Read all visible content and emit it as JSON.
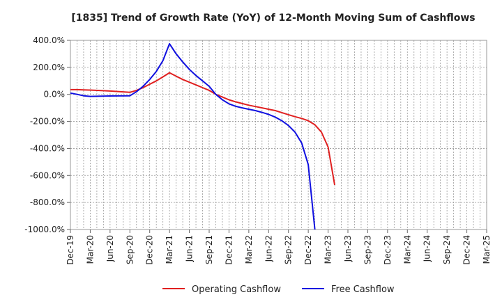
{
  "chart_data": {
    "type": "line",
    "title": "[1835]  Trend of Growth Rate (YoY) of 12-Month Moving Sum of Cashflows",
    "x_labels": [
      "Dec-19",
      "Mar-20",
      "Jun-20",
      "Sep-20",
      "Dec-20",
      "Mar-21",
      "Jun-21",
      "Sep-21",
      "Dec-21",
      "Mar-22",
      "Jun-22",
      "Sep-22",
      "Dec-22",
      "Mar-23",
      "Jun-23",
      "Sep-23",
      "Dec-23",
      "Mar-24",
      "Jun-24",
      "Sep-24",
      "Dec-24",
      "Mar-25"
    ],
    "y_ticks": [
      "400.0%",
      "200.0%",
      "0.0%",
      "-200.0%",
      "-400.0%",
      "-600.0%",
      "-800.0%",
      "-1000.0%"
    ],
    "ylim": [
      -1000,
      400
    ],
    "grid": true,
    "legend_position": "bottom-center",
    "series": [
      {
        "name": "Operating Cashflow",
        "color": "#e02020",
        "points": [
          [
            "Dec-19",
            35
          ],
          [
            "Jan-20",
            35
          ],
          [
            "Feb-20",
            33
          ],
          [
            "Mar-20",
            32
          ],
          [
            "Jun-20",
            25
          ],
          [
            "Sep-20",
            15
          ],
          [
            "Oct-20",
            30
          ],
          [
            "Nov-20",
            50
          ],
          [
            "Dec-20",
            75
          ],
          [
            "Jan-21",
            100
          ],
          [
            "Feb-21",
            130
          ],
          [
            "Mar-21",
            160
          ],
          [
            "Apr-21",
            135
          ],
          [
            "May-21",
            110
          ],
          [
            "Jun-21",
            90
          ],
          [
            "Jul-21",
            70
          ],
          [
            "Aug-21",
            50
          ],
          [
            "Sep-21",
            30
          ],
          [
            "Oct-21",
            0
          ],
          [
            "Nov-21",
            -20
          ],
          [
            "Dec-21",
            -40
          ],
          [
            "Jan-22",
            -55
          ],
          [
            "Feb-22",
            -68
          ],
          [
            "Mar-22",
            -80
          ],
          [
            "Apr-22",
            -90
          ],
          [
            "May-22",
            -100
          ],
          [
            "Jun-22",
            -110
          ],
          [
            "Jul-22",
            -120
          ],
          [
            "Aug-22",
            -135
          ],
          [
            "Sep-22",
            -150
          ],
          [
            "Oct-22",
            -165
          ],
          [
            "Nov-22",
            -178
          ],
          [
            "Dec-22",
            -195
          ],
          [
            "Jan-23",
            -225
          ],
          [
            "Feb-23",
            -280
          ],
          [
            "Mar-23",
            -390
          ],
          [
            "Apr-23",
            -670
          ]
        ]
      },
      {
        "name": "Free Cashflow",
        "color": "#1010e0",
        "points": [
          [
            "Dec-19",
            10
          ],
          [
            "Jan-20",
            0
          ],
          [
            "Feb-20",
            -10
          ],
          [
            "Mar-20",
            -15
          ],
          [
            "Jun-20",
            -12
          ],
          [
            "Sep-20",
            -10
          ],
          [
            "Oct-20",
            20
          ],
          [
            "Nov-20",
            60
          ],
          [
            "Dec-20",
            110
          ],
          [
            "Jan-21",
            170
          ],
          [
            "Feb-21",
            250
          ],
          [
            "Mar-21",
            375
          ],
          [
            "Apr-21",
            300
          ],
          [
            "May-21",
            240
          ],
          [
            "Jun-21",
            185
          ],
          [
            "Jul-21",
            140
          ],
          [
            "Aug-21",
            100
          ],
          [
            "Sep-21",
            60
          ],
          [
            "Oct-21",
            0
          ],
          [
            "Nov-21",
            -40
          ],
          [
            "Dec-21",
            -70
          ],
          [
            "Jan-22",
            -88
          ],
          [
            "Feb-22",
            -100
          ],
          [
            "Mar-22",
            -110
          ],
          [
            "Apr-22",
            -120
          ],
          [
            "May-22",
            -133
          ],
          [
            "Jun-22",
            -148
          ],
          [
            "Jul-22",
            -168
          ],
          [
            "Aug-22",
            -195
          ],
          [
            "Sep-22",
            -230
          ],
          [
            "Oct-22",
            -280
          ],
          [
            "Nov-22",
            -360
          ],
          [
            "Dec-22",
            -520
          ],
          [
            "Jan-23",
            -1000
          ]
        ]
      }
    ]
  }
}
